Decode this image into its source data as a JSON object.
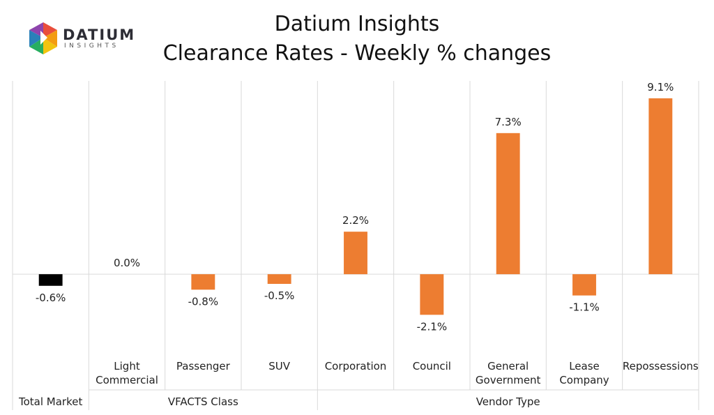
{
  "header": {
    "title_line1": "Datium Insights",
    "title_line2": "Clearance Rates - Weekly % changes"
  },
  "logo": {
    "word": "DATIUM",
    "sub": "INSIGHTS",
    "colors": [
      "#e94e3c",
      "#f39c12",
      "#f1c40f",
      "#27ae60",
      "#2980b9",
      "#8e44ad"
    ]
  },
  "chart_data": {
    "type": "bar",
    "title": "Clearance Rates - Weekly % changes",
    "categories": [
      "Total Market",
      "Light Commercial",
      "Passenger",
      "SUV",
      "Corporation",
      "Council",
      "General Government",
      "Lease Company",
      "Repossessions"
    ],
    "category_lines": [
      [
        "Total Market"
      ],
      [
        "Light",
        "Commercial"
      ],
      [
        "Passenger"
      ],
      [
        "SUV"
      ],
      [
        "Corporation"
      ],
      [
        "Council"
      ],
      [
        "General",
        "Government"
      ],
      [
        "Lease",
        "Company"
      ],
      [
        "Repossessions"
      ]
    ],
    "values": [
      -0.6,
      0.0,
      -0.8,
      -0.5,
      2.2,
      -2.1,
      7.3,
      -1.1,
      9.1
    ],
    "value_labels": [
      "-0.6%",
      "0.0%",
      "-0.8%",
      "-0.5%",
      "2.2%",
      "-2.1%",
      "7.3%",
      "-1.1%",
      "9.1%"
    ],
    "bar_colors": [
      "#000000",
      "#ed7d31",
      "#ed7d31",
      "#ed7d31",
      "#ed7d31",
      "#ed7d31",
      "#ed7d31",
      "#ed7d31",
      "#ed7d31"
    ],
    "groups": [
      {
        "label": "Total Market",
        "count": 1,
        "show_category_labels": false
      },
      {
        "label": "VFACTS Class",
        "count": 3,
        "show_category_labels": true
      },
      {
        "label": "Vendor Type",
        "count": 5,
        "show_category_labels": true
      }
    ],
    "ylim": [
      -4.0,
      10.0
    ],
    "xlabel": "",
    "ylabel": "",
    "grid": false
  }
}
